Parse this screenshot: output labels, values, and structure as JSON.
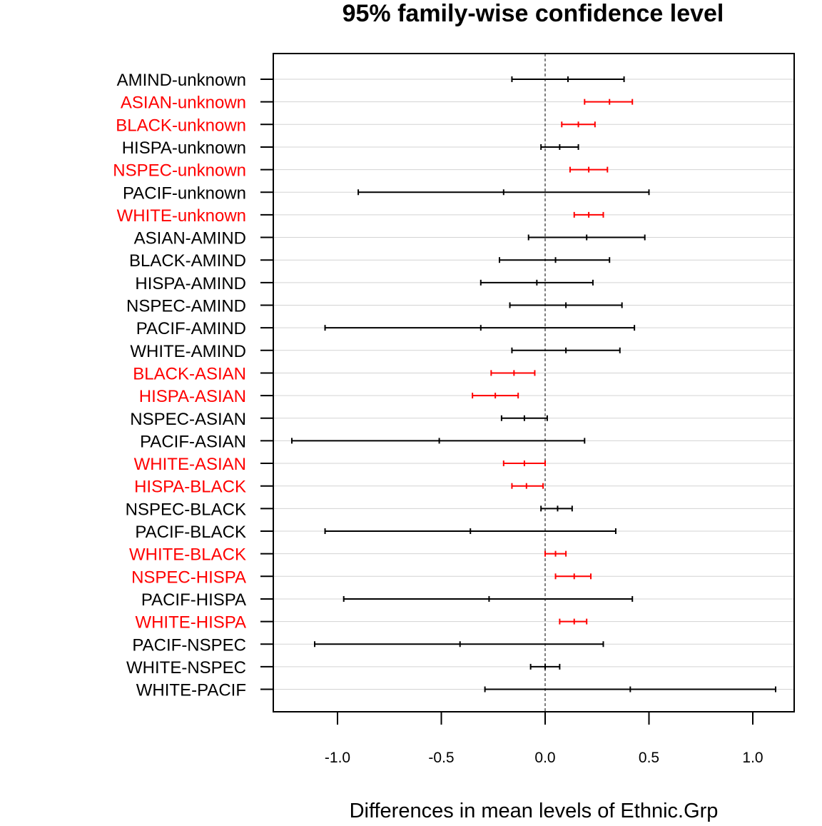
{
  "chart_data": {
    "type": "errorbar",
    "title": "95% family-wise confidence level",
    "xlabel": "Differences in mean levels of Ethnic.Grp",
    "ylabel": "",
    "xlim": [
      -1.3,
      1.2
    ],
    "x_ticks": [
      "-1.0",
      "-0.5",
      "0.0",
      "0.5",
      "1.0"
    ],
    "x_tick_values": [
      -1.0,
      -0.5,
      0.0,
      0.5,
      1.0
    ],
    "reference_line": 0.0,
    "grid": true,
    "colors": {
      "significant": "#ff0000",
      "not_significant": "#000000",
      "grid": "#d3d3d3"
    },
    "comparisons": [
      {
        "label": "AMIND-unknown",
        "diff": 0.11,
        "lwr": -0.16,
        "upr": 0.38,
        "significant": false
      },
      {
        "label": "ASIAN-unknown",
        "diff": 0.31,
        "lwr": 0.19,
        "upr": 0.42,
        "significant": true
      },
      {
        "label": "BLACK-unknown",
        "diff": 0.16,
        "lwr": 0.08,
        "upr": 0.24,
        "significant": true
      },
      {
        "label": "HISPA-unknown",
        "diff": 0.07,
        "lwr": -0.02,
        "upr": 0.16,
        "significant": false
      },
      {
        "label": "NSPEC-unknown",
        "diff": 0.21,
        "lwr": 0.12,
        "upr": 0.3,
        "significant": true
      },
      {
        "label": "PACIF-unknown",
        "diff": -0.2,
        "lwr": -0.9,
        "upr": 0.5,
        "significant": false
      },
      {
        "label": "WHITE-unknown",
        "diff": 0.21,
        "lwr": 0.14,
        "upr": 0.28,
        "significant": true
      },
      {
        "label": "ASIAN-AMIND",
        "diff": 0.2,
        "lwr": -0.08,
        "upr": 0.48,
        "significant": false
      },
      {
        "label": "BLACK-AMIND",
        "diff": 0.05,
        "lwr": -0.22,
        "upr": 0.31,
        "significant": false
      },
      {
        "label": "HISPA-AMIND",
        "diff": -0.04,
        "lwr": -0.31,
        "upr": 0.23,
        "significant": false
      },
      {
        "label": "NSPEC-AMIND",
        "diff": 0.1,
        "lwr": -0.17,
        "upr": 0.37,
        "significant": false
      },
      {
        "label": "PACIF-AMIND",
        "diff": -0.31,
        "lwr": -1.06,
        "upr": 0.43,
        "significant": false
      },
      {
        "label": "WHITE-AMIND",
        "diff": 0.1,
        "lwr": -0.16,
        "upr": 0.36,
        "significant": false
      },
      {
        "label": "BLACK-ASIAN",
        "diff": -0.15,
        "lwr": -0.26,
        "upr": -0.05,
        "significant": true
      },
      {
        "label": "HISPA-ASIAN",
        "diff": -0.24,
        "lwr": -0.35,
        "upr": -0.13,
        "significant": true
      },
      {
        "label": "NSPEC-ASIAN",
        "diff": -0.1,
        "lwr": -0.21,
        "upr": 0.01,
        "significant": false
      },
      {
        "label": "PACIF-ASIAN",
        "diff": -0.51,
        "lwr": -1.22,
        "upr": 0.19,
        "significant": false
      },
      {
        "label": "WHITE-ASIAN",
        "diff": -0.1,
        "lwr": -0.2,
        "upr": 0.0,
        "significant": true
      },
      {
        "label": "HISPA-BLACK",
        "diff": -0.09,
        "lwr": -0.16,
        "upr": -0.01,
        "significant": true
      },
      {
        "label": "NSPEC-BLACK",
        "diff": 0.06,
        "lwr": -0.02,
        "upr": 0.13,
        "significant": false
      },
      {
        "label": "PACIF-BLACK",
        "diff": -0.36,
        "lwr": -1.06,
        "upr": 0.34,
        "significant": false
      },
      {
        "label": "WHITE-BLACK",
        "diff": 0.05,
        "lwr": 0.0,
        "upr": 0.1,
        "significant": true
      },
      {
        "label": "NSPEC-HISPA",
        "diff": 0.14,
        "lwr": 0.05,
        "upr": 0.22,
        "significant": true
      },
      {
        "label": "PACIF-HISPA",
        "diff": -0.27,
        "lwr": -0.97,
        "upr": 0.42,
        "significant": false
      },
      {
        "label": "WHITE-HISPA",
        "diff": 0.14,
        "lwr": 0.07,
        "upr": 0.2,
        "significant": true
      },
      {
        "label": "PACIF-NSPEC",
        "diff": -0.41,
        "lwr": -1.11,
        "upr": 0.28,
        "significant": false
      },
      {
        "label": "WHITE-NSPEC",
        "diff": 0.0,
        "lwr": -0.07,
        "upr": 0.07,
        "significant": false
      },
      {
        "label": "WHITE-PACIF",
        "diff": 0.41,
        "lwr": -0.29,
        "upr": 1.11,
        "significant": false
      }
    ]
  }
}
